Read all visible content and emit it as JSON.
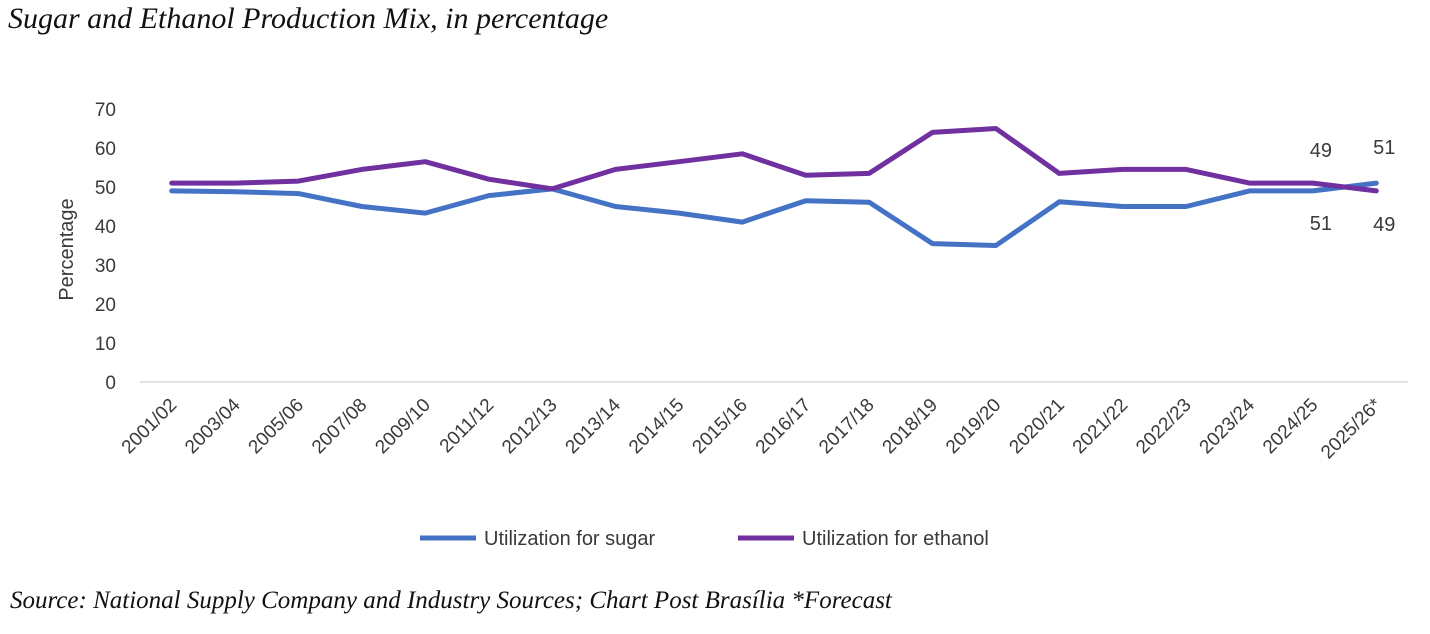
{
  "header": {
    "title": "Sugar and Ethanol Production Mix, in percentage"
  },
  "footer": {
    "source": "Source: National Supply Company and Industry Sources; Chart Post Brasília *Forecast"
  },
  "chart_data": {
    "type": "line",
    "title": "Sugar and Ethanol Production Mix, in percentage",
    "xlabel": "",
    "ylabel": "Percentage",
    "ylim": [
      0,
      70
    ],
    "yticks": [
      0,
      10,
      20,
      30,
      40,
      50,
      60,
      70
    ],
    "grid": false,
    "legend_position": "bottom",
    "categories": [
      "2001/02",
      "2003/04",
      "2005/06",
      "2007/08",
      "2009/10",
      "2011/12",
      "2012/13",
      "2013/14",
      "2014/15",
      "2015/16",
      "2016/17",
      "2017/18",
      "2018/19",
      "2019/20",
      "2020/21",
      "2021/22",
      "2022/23",
      "2023/24",
      "2024/25",
      "2025/26*"
    ],
    "series": [
      {
        "name": "Utilization for sugar",
        "color": "#4472C4",
        "values": [
          49,
          48.8,
          48.3,
          45,
          43.3,
          47.8,
          49.5,
          45,
          43.3,
          41,
          46.5,
          46.1,
          35.5,
          35,
          46.2,
          45,
          45,
          49,
          49,
          51
        ]
      },
      {
        "name": "Utilization for ethanol",
        "color": "#7030A0",
        "values": [
          51,
          51,
          51.5,
          54.5,
          56.5,
          52,
          49.5,
          54.5,
          56.5,
          58.5,
          53,
          53.5,
          64,
          65,
          53.5,
          54.5,
          54.5,
          51,
          51,
          49
        ]
      }
    ],
    "annotations": [
      {
        "text": "49",
        "category": "2024/25",
        "series": "Utilization for sugar",
        "placement": "above"
      },
      {
        "text": "51",
        "category": "2024/25",
        "series": "Utilization for ethanol",
        "placement": "below"
      },
      {
        "text": "51",
        "category": "2025/26*",
        "series": "Utilization for sugar",
        "placement": "above"
      },
      {
        "text": "49",
        "category": "2025/26*",
        "series": "Utilization for ethanol",
        "placement": "below"
      }
    ]
  }
}
